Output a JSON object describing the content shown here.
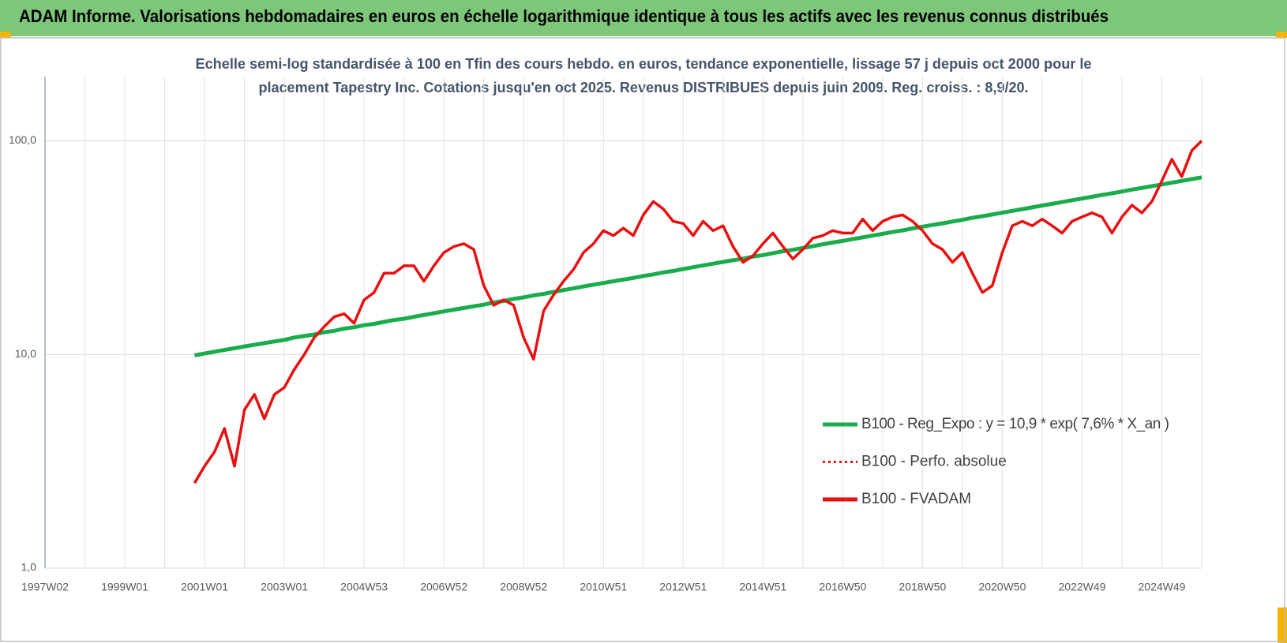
{
  "chart_data": {
    "type": "line",
    "title": "ADAM Informe. Valorisations hebdomadaires en euros en échelle logarithmique identique à tous les actifs avec les revenus connus distribués",
    "subtitle": [
      "Echelle semi-log standardisée à 100 en Tfin des cours hebdo. en euros, tendance exponentielle, lissage 57 j depuis oct 2000 pour le",
      "placement Tapestry Inc.  Cotations jusqu'en oct 2025. Revenus DISTRIBUES depuis juin 2009. Reg. croiss. : 8,9/20."
    ],
    "categories": [
      "1997W02",
      null,
      null,
      null,
      null,
      null,
      null,
      null,
      "1999W01",
      null,
      null,
      null,
      null,
      null,
      null,
      null,
      "2001W01",
      null,
      null,
      null,
      null,
      null,
      null,
      null,
      "2003W01",
      null,
      null,
      null,
      null,
      null,
      null,
      null,
      "2004W53",
      null,
      null,
      null,
      null,
      null,
      null,
      null,
      "2006W52",
      null,
      null,
      null,
      null,
      null,
      null,
      null,
      "2008W52",
      null,
      null,
      null,
      null,
      null,
      null,
      null,
      "2010W51",
      null,
      null,
      null,
      null,
      null,
      null,
      null,
      "2012W51",
      null,
      null,
      null,
      null,
      null,
      null,
      null,
      "2014W51",
      null,
      null,
      null,
      null,
      null,
      null,
      null,
      "2016W50",
      null,
      null,
      null,
      null,
      null,
      null,
      null,
      "2018W50",
      null,
      null,
      null,
      null,
      null,
      null,
      null,
      "2020W50",
      null,
      null,
      null,
      null,
      null,
      null,
      null,
      "2022W49",
      null,
      null,
      null,
      null,
      null,
      null,
      null,
      "2024W49",
      null,
      null,
      null,
      null
    ],
    "log_scale": true,
    "ylim": [
      1,
      200
    ],
    "yticks": [
      {
        "value": 1,
        "label": "1,0"
      },
      {
        "value": 10,
        "label": "10,0"
      },
      {
        "value": 100,
        "label": "100,0"
      }
    ],
    "grid": true,
    "legend": "right",
    "series": [
      {
        "name": "B100 - Reg_Expo : y = 10,9 * exp( 7,6% *  X_an )",
        "color": "#1aab4b",
        "style": "solid",
        "values": [
          null,
          null,
          null,
          null,
          null,
          null,
          null,
          null,
          null,
          null,
          null,
          null,
          null,
          null,
          null,
          9.9,
          10.1,
          10.3,
          10.5,
          10.7,
          10.9,
          11.1,
          11.3,
          11.5,
          11.7,
          12.0,
          12.2,
          12.4,
          12.7,
          12.9,
          13.2,
          13.4,
          13.7,
          13.9,
          14.2,
          14.5,
          14.7,
          15.0,
          15.3,
          15.6,
          15.9,
          16.2,
          16.5,
          16.8,
          17.1,
          17.5,
          17.8,
          18.2,
          18.5,
          18.9,
          19.2,
          19.6,
          20.0,
          20.4,
          20.8,
          21.2,
          21.6,
          22.0,
          22.4,
          22.8,
          23.3,
          23.7,
          24.2,
          24.6,
          25.1,
          25.6,
          26.1,
          26.6,
          27.1,
          27.6,
          28.1,
          28.7,
          29.2,
          29.8,
          30.4,
          30.9,
          31.5,
          32.1,
          32.8,
          33.4,
          34.0,
          34.7,
          35.3,
          36.0,
          36.7,
          37.4,
          38.1,
          38.9,
          39.6,
          40.4,
          41.1,
          41.9,
          42.7,
          43.6,
          44.4,
          45.2,
          46.1,
          47.0,
          47.9,
          48.8,
          49.8,
          50.7,
          51.7,
          52.7,
          53.7,
          54.7,
          55.8,
          56.8,
          57.9,
          59.1,
          60.2,
          61.4,
          62.5,
          63.7,
          64.9,
          66.2,
          67.4
        ]
      },
      {
        "name": "B100 - Perfo. absolue",
        "color": "#e81010",
        "style": "dotted",
        "values": [
          null,
          null,
          null,
          null,
          null,
          null,
          null,
          null,
          null,
          null,
          null,
          null,
          null,
          null,
          null,
          null,
          null,
          null,
          null,
          null,
          null,
          null,
          null,
          null,
          null,
          null,
          null,
          null,
          null,
          null,
          null,
          null,
          null,
          null,
          null,
          null,
          null,
          null,
          null,
          null,
          null,
          null,
          null,
          null,
          null,
          null,
          null,
          null,
          null,
          null,
          null,
          null,
          null,
          null,
          null,
          null,
          null,
          null,
          null,
          null,
          null,
          null,
          null,
          null,
          null,
          null,
          null,
          null,
          null,
          null,
          null,
          null,
          null,
          null,
          null,
          null,
          null,
          null,
          null,
          null,
          null,
          null,
          null,
          null,
          null,
          null,
          null,
          null,
          null,
          null,
          null,
          null,
          null,
          null,
          null,
          null,
          null,
          null,
          null,
          null,
          null,
          null,
          null,
          null,
          null,
          null,
          null,
          null,
          null,
          null,
          null,
          null,
          null,
          null,
          null,
          null,
          null
        ]
      },
      {
        "name": "B100 - FVADAM",
        "color": "#e81010",
        "style": "solid",
        "values": [
          null,
          null,
          null,
          null,
          null,
          null,
          null,
          null,
          null,
          null,
          null,
          null,
          null,
          null,
          null,
          2.5,
          3.0,
          3.5,
          4.5,
          3.0,
          5.5,
          6.5,
          5.0,
          6.5,
          7.0,
          8.5,
          10.0,
          12.0,
          13.5,
          15,
          15.5,
          14,
          18,
          19.5,
          24,
          24,
          26,
          26,
          22,
          26,
          30,
          32,
          33,
          31,
          21,
          17,
          18,
          17,
          12,
          9.5,
          16,
          19,
          22,
          25,
          30,
          33,
          38,
          36,
          39,
          36,
          45,
          52,
          48,
          42,
          41,
          36,
          42,
          38,
          40,
          32,
          27,
          29,
          33,
          37,
          32,
          28,
          31,
          35,
          36,
          38,
          37,
          37,
          43,
          38,
          42,
          44,
          45,
          42,
          38,
          33,
          31,
          27,
          30,
          24,
          19.5,
          21,
          30,
          40,
          42,
          40,
          43,
          40,
          37,
          42,
          44,
          46,
          44,
          37,
          44,
          50,
          46,
          52,
          65,
          82,
          68,
          90,
          100
        ]
      }
    ]
  }
}
